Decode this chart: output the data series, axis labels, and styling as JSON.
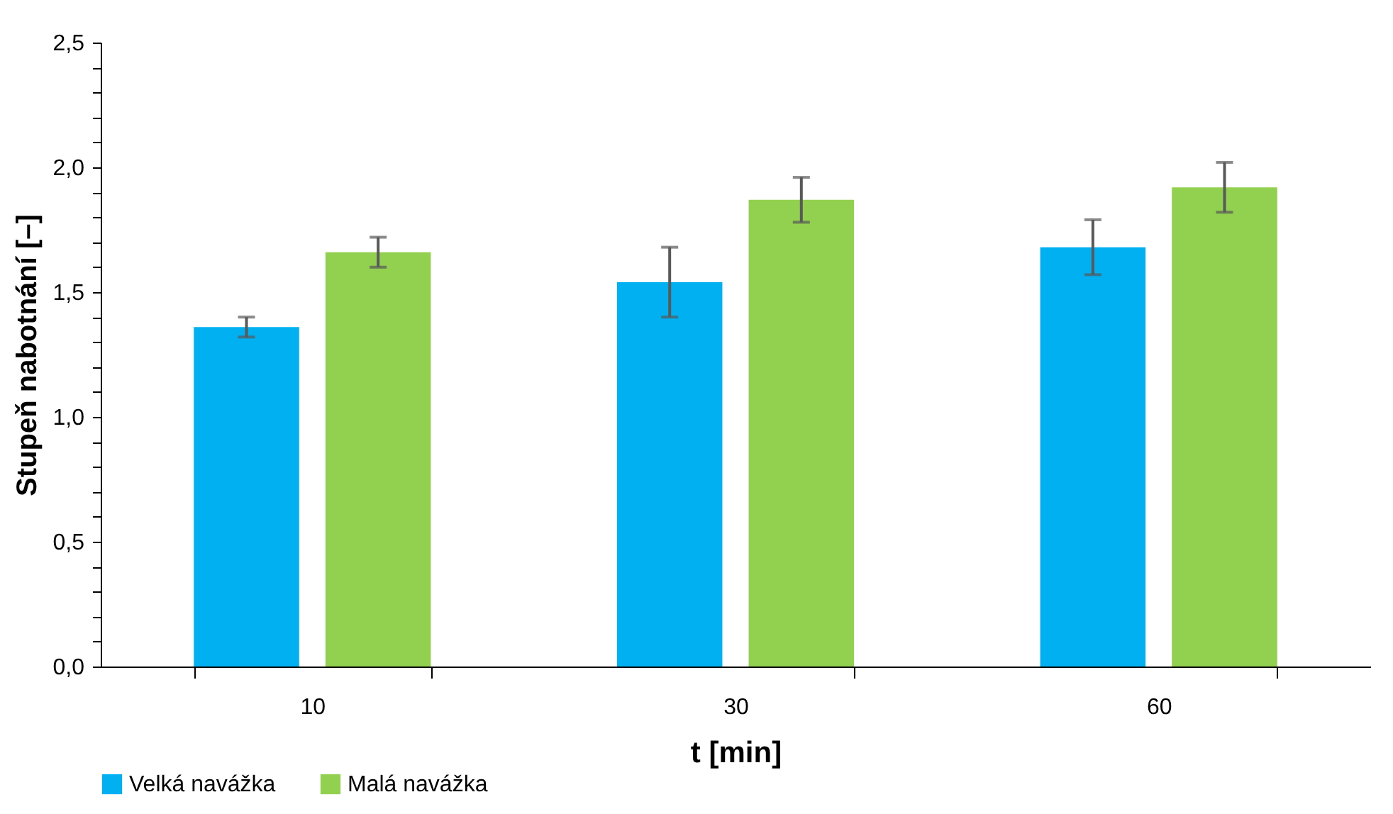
{
  "chart_data": {
    "type": "bar",
    "xlabel": "t [min]",
    "ylabel": "Stupeň nabotnání [–]",
    "categories": [
      "10",
      "30",
      "60"
    ],
    "series": [
      {
        "name": "Velká navážka",
        "color": "#00b0f0",
        "values": [
          1.36,
          1.54,
          1.68
        ],
        "errors": [
          0.04,
          0.14,
          0.11
        ]
      },
      {
        "name": "Malá navážka",
        "color": "#92d050",
        "values": [
          1.66,
          1.87,
          1.92
        ],
        "errors": [
          0.06,
          0.09,
          0.1
        ]
      }
    ],
    "ylim": [
      0,
      2.5
    ],
    "yticks": [
      {
        "value": 0,
        "label": "0,0"
      },
      {
        "value": 0.1,
        "label": null
      },
      {
        "value": 0.2,
        "label": null
      },
      {
        "value": 0.3,
        "label": null
      },
      {
        "value": 0.4,
        "label": null
      },
      {
        "value": 0.5,
        "label": "0,5"
      },
      {
        "value": 0.6,
        "label": null
      },
      {
        "value": 0.7,
        "label": null
      },
      {
        "value": 0.8,
        "label": null
      },
      {
        "value": 0.9,
        "label": null
      },
      {
        "value": 1,
        "label": "1,0"
      },
      {
        "value": 1.1,
        "label": null
      },
      {
        "value": 1.2,
        "label": null
      },
      {
        "value": 1.3,
        "label": null
      },
      {
        "value": 1.4,
        "label": null
      },
      {
        "value": 1.5,
        "label": "1,5"
      },
      {
        "value": 1.6,
        "label": null
      },
      {
        "value": 1.7,
        "label": null
      },
      {
        "value": 1.8,
        "label": null
      },
      {
        "value": 1.9,
        "label": null
      },
      {
        "value": 2,
        "label": "2,0"
      },
      {
        "value": 2.1,
        "label": null
      },
      {
        "value": 2.2,
        "label": null
      },
      {
        "value": 2.3,
        "label": null
      },
      {
        "value": 2.4,
        "label": null
      },
      {
        "value": 2.5,
        "label": "2,5"
      }
    ],
    "grid": false,
    "legend": "bottom"
  }
}
